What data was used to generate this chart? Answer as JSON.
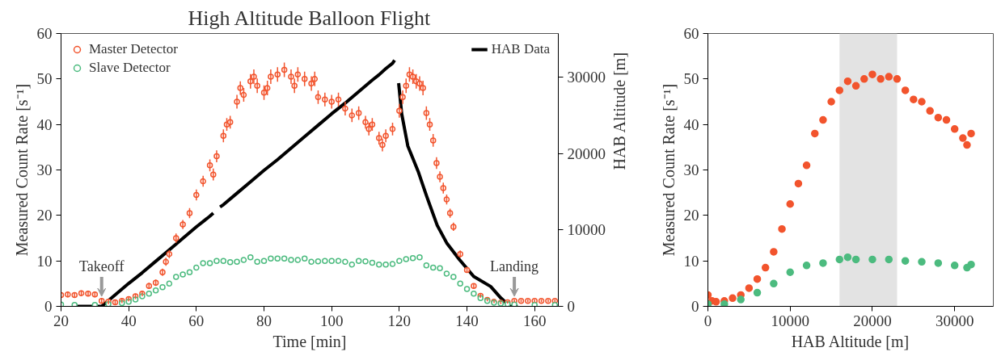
{
  "chart_data": [
    {
      "type": "scatter",
      "title": "High Altitude Balloon Flight",
      "xlabel": "Time [min]",
      "ylabel": "Measured Count Rate [s⁻¹]",
      "y2label": "HAB Altitude [m]",
      "xlim": [
        20,
        167
      ],
      "xticks": [
        20,
        40,
        60,
        80,
        100,
        120,
        140,
        160
      ],
      "ylim": [
        0,
        60
      ],
      "yticks": [
        0,
        10,
        20,
        30,
        40,
        50,
        60
      ],
      "y2lim": [
        0,
        35700
      ],
      "y2ticks": [
        0,
        10000,
        20000,
        30000
      ],
      "grid": false,
      "legend": "top left",
      "marker": "circle",
      "annotations": [
        {
          "text": "Takeoff",
          "x": 32,
          "y": 0
        },
        {
          "text": "Landing",
          "x": 154,
          "y": 0
        }
      ],
      "series": [
        {
          "name": "Master Detector",
          "color": "#f2542d",
          "x": [
            20,
            22,
            24,
            26,
            28,
            30,
            32,
            34,
            36,
            38,
            40,
            42,
            44,
            46,
            48,
            50,
            51,
            52,
            54,
            56,
            58,
            60,
            62,
            64,
            65,
            66,
            68,
            69,
            70,
            72,
            73,
            74,
            76,
            77,
            78,
            80,
            81,
            82,
            84,
            86,
            88,
            89,
            90,
            92,
            94,
            95,
            96,
            98,
            100,
            102,
            104,
            106,
            108,
            110,
            111,
            112,
            114,
            115,
            116,
            118,
            120,
            121,
            122,
            123,
            124,
            125,
            126,
            127,
            128,
            129,
            130,
            131,
            132,
            133,
            134,
            135,
            136,
            138,
            140,
            142,
            144,
            146,
            148,
            150,
            152,
            154,
            156,
            158,
            160,
            162,
            164,
            166
          ],
          "values": [
            2.5,
            2.6,
            2.5,
            2.9,
            2.8,
            2.6,
            1.2,
            1.0,
            0.9,
            1.2,
            1.6,
            2.2,
            2.8,
            4.5,
            5.2,
            7.5,
            9.8,
            11.5,
            15,
            18,
            20.5,
            24.5,
            27.5,
            31,
            29,
            33,
            37.5,
            40,
            40.5,
            45,
            48,
            46.5,
            49.5,
            50.5,
            48.5,
            47,
            48,
            50.5,
            51,
            52,
            50.5,
            48.5,
            51,
            50,
            49,
            50,
            46,
            45.5,
            45,
            45.5,
            43.5,
            42,
            42.5,
            40.5,
            39,
            40,
            37,
            35.5,
            37.5,
            39,
            43,
            46,
            48.5,
            51,
            50.5,
            49.5,
            49,
            48,
            42.5,
            40,
            36.5,
            31.5,
            28.5,
            26,
            23.5,
            20.5,
            17.5,
            11.5,
            8,
            4.5,
            2.3,
            1.4,
            1.0,
            0.8,
            0.9,
            1.2,
            1.2,
            1.2,
            1.2,
            1.2,
            1.2,
            1.2
          ],
          "errors": [
            0.6,
            0.6,
            0.6,
            0.6,
            0.6,
            0.6,
            0.5,
            0.5,
            0.5,
            0.5,
            0.5,
            0.6,
            0.6,
            0.7,
            0.7,
            0.8,
            0.9,
            0.9,
            1,
            1,
            1.1,
            1.2,
            1.2,
            1.3,
            1.3,
            1.3,
            1.4,
            1.4,
            1.4,
            1.5,
            1.5,
            1.5,
            1.6,
            1.6,
            1.6,
            1.6,
            1.6,
            1.6,
            1.6,
            1.6,
            1.6,
            1.6,
            1.6,
            1.6,
            1.6,
            1.6,
            1.5,
            1.5,
            1.5,
            1.5,
            1.5,
            1.5,
            1.5,
            1.4,
            1.4,
            1.4,
            1.4,
            1.4,
            1.4,
            1.4,
            1.5,
            1.5,
            1.6,
            1.6,
            1.6,
            1.6,
            1.6,
            1.6,
            1.5,
            1.4,
            1.4,
            1.3,
            1.2,
            1.2,
            1.1,
            1.0,
            0.9,
            0.8,
            0.6,
            0.5,
            0.4,
            0.3,
            0.3,
            0.3,
            0.3,
            0.3,
            0.3,
            0.3,
            0.3,
            0.3,
            0.3,
            0.3
          ]
        },
        {
          "name": "Slave Detector",
          "color": "#4cbb7f",
          "x": [
            20,
            24,
            30,
            34,
            38,
            40,
            42,
            44,
            46,
            48,
            50,
            52,
            54,
            56,
            58,
            60,
            62,
            64,
            66,
            68,
            70,
            72,
            74,
            76,
            78,
            80,
            82,
            84,
            86,
            88,
            90,
            92,
            94,
            96,
            98,
            100,
            102,
            104,
            106,
            108,
            110,
            112,
            114,
            116,
            118,
            120,
            122,
            124,
            126,
            128,
            130,
            132,
            134,
            136,
            138,
            140,
            142,
            144,
            146,
            148,
            150,
            152,
            154,
            160,
            166
          ],
          "values": [
            0.4,
            0.3,
            0.3,
            0.5,
            0.7,
            1,
            1.5,
            2.2,
            2.8,
            3.5,
            4.2,
            5,
            6.5,
            7,
            7.5,
            8.5,
            9.5,
            9.5,
            10,
            10,
            9.7,
            9.8,
            10.2,
            10.8,
            9.8,
            10,
            10.5,
            10.5,
            10.5,
            10.2,
            10.2,
            10.5,
            9.8,
            9.9,
            10,
            10,
            10,
            9.8,
            9.2,
            10,
            9.9,
            9.6,
            9.2,
            9.2,
            9.3,
            10,
            10.4,
            10.6,
            10.8,
            9,
            8.5,
            8.4,
            7.2,
            6.5,
            5,
            3.8,
            2.8,
            1.8,
            1.2,
            0.8,
            0.6,
            0.5,
            0.4,
            0.3,
            0.3
          ]
        },
        {
          "name": "HAB Data",
          "type": "line",
          "marker": "none",
          "axis": "y2",
          "color": "#000000",
          "x": [
            24,
            28,
            32,
            36,
            40,
            44,
            48,
            52,
            56,
            60,
            64,
            65,
            66,
            67,
            68,
            72,
            76,
            80,
            84,
            88,
            92,
            96,
            100,
            104,
            108,
            112,
            114,
            116,
            118,
            118.6,
            119.2,
            119.8,
            120.7,
            122.5,
            125.7,
            128,
            131.2,
            134,
            137.8,
            142,
            147,
            150,
            152.7,
            155
          ],
          "values": [
            0,
            0,
            0,
            1500,
            3000,
            4400,
            5900,
            7400,
            8900,
            10400,
            11800,
            12200,
            null,
            13000,
            13300,
            14800,
            16300,
            17800,
            19200,
            20700,
            22200,
            23700,
            25200,
            26600,
            28100,
            29600,
            30300,
            31100,
            31800,
            32200,
            null,
            29200,
            25200,
            21000,
            17500,
            14500,
            10600,
            8300,
            6100,
            3900,
            2600,
            1100,
            0,
            0
          ]
        }
      ]
    },
    {
      "type": "scatter",
      "xlabel": "HAB Altitude [m]",
      "ylabel": "Measured Count Rate [s⁻¹]",
      "xlim": [
        0,
        34700
      ],
      "xticks": [
        0,
        10000,
        20000,
        30000
      ],
      "ylim": [
        0,
        60
      ],
      "yticks": [
        0,
        10,
        20,
        30,
        40,
        50,
        60
      ],
      "grid": false,
      "marker": "circle",
      "bands": [
        {
          "axis": "x",
          "from": 16000,
          "to": 23000,
          "color": "#e3e3e3"
        }
      ],
      "series": [
        {
          "color": "#f2542d",
          "x": [
            0,
            500,
            1000,
            2000,
            3000,
            4000,
            5000,
            6000,
            7000,
            8000,
            9000,
            10000,
            11000,
            12000,
            13000,
            14000,
            15000,
            16000,
            17000,
            18000,
            19000,
            20000,
            21000,
            22000,
            23000,
            24000,
            25000,
            26000,
            27000,
            28000,
            29000,
            30000,
            31000,
            31500,
            32000
          ],
          "values": [
            2.5,
            1.2,
            1.0,
            1.2,
            1.8,
            2.5,
            4,
            6,
            8.5,
            12,
            17,
            22.5,
            27,
            31,
            38,
            41,
            45,
            47.5,
            49.5,
            48.5,
            50,
            51,
            50,
            50.5,
            50,
            47.5,
            45.5,
            45,
            43,
            41.5,
            41,
            39,
            37,
            35.5,
            38
          ]
        },
        {
          "color": "#4cbb7f",
          "x": [
            0,
            2000,
            4000,
            6000,
            8000,
            10000,
            12000,
            14000,
            16000,
            17000,
            18000,
            20000,
            22000,
            24000,
            26000,
            28000,
            30000,
            31500,
            32000
          ],
          "values": [
            0.5,
            0.5,
            1.5,
            3,
            5,
            7.5,
            9,
            9.5,
            10.3,
            10.8,
            10.3,
            10.3,
            10.3,
            10,
            9.8,
            9.5,
            9,
            8.5,
            9.2
          ]
        }
      ]
    }
  ]
}
